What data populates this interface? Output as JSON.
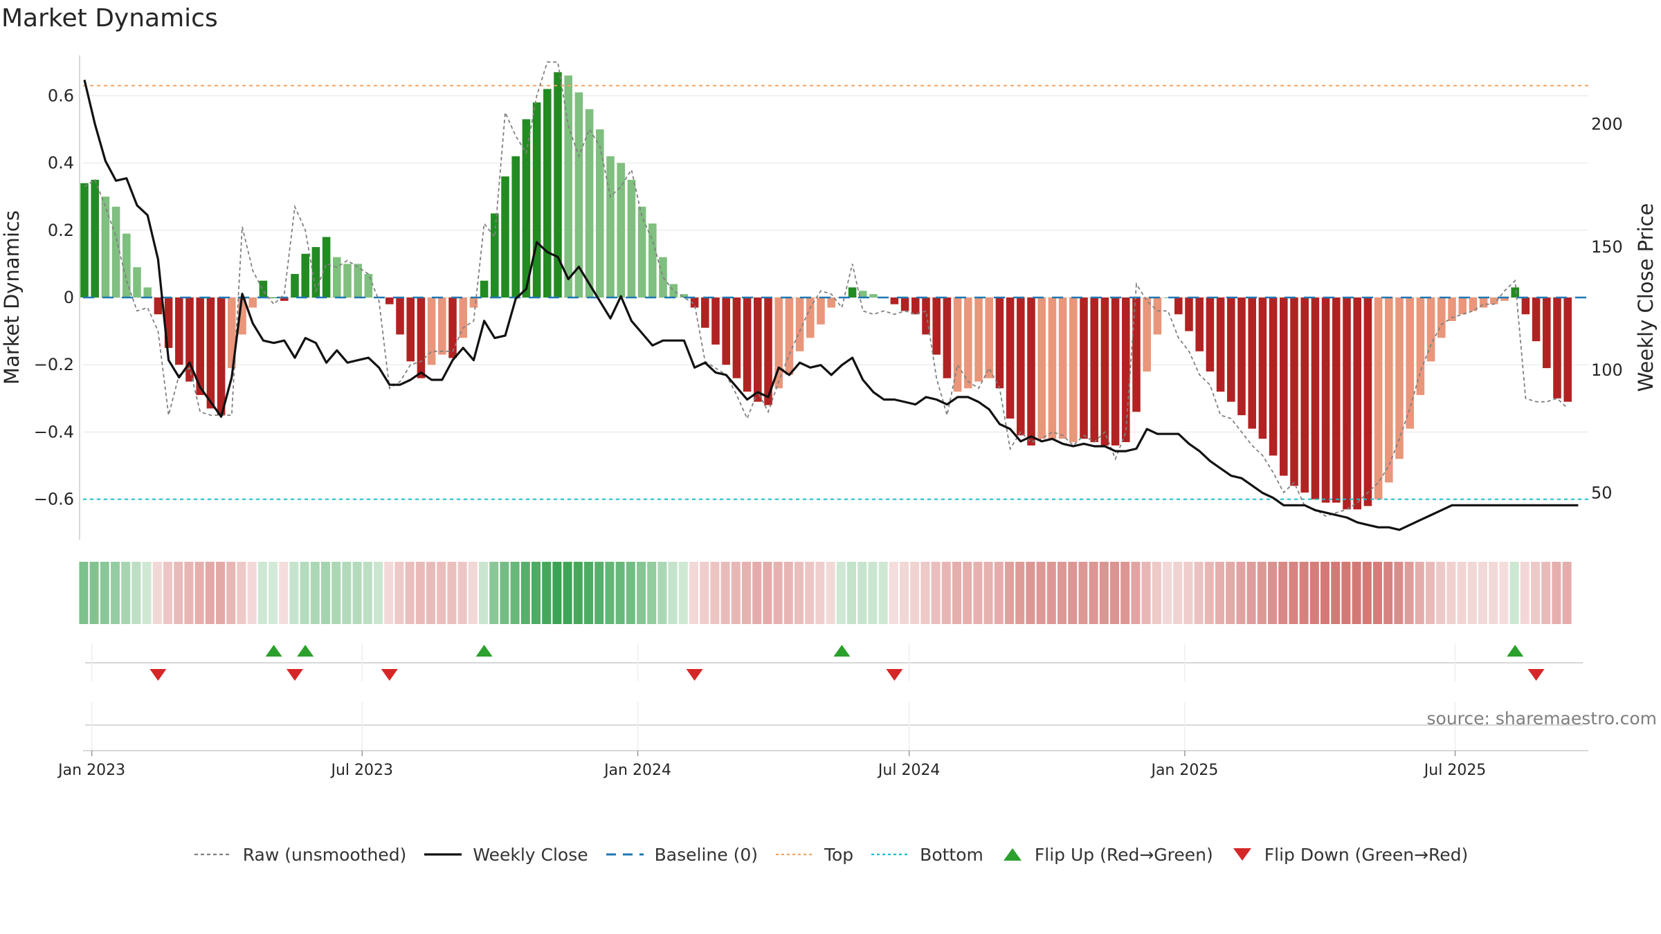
{
  "chart_data": {
    "type": "bar",
    "title": "Market Dynamics",
    "source": "source: sharemaestro.com",
    "ylabel_left": "Market Dynamics",
    "ylabel_right": "Weekly Close Price",
    "ylim_left": [
      -0.72,
      0.72
    ],
    "ylim_right": [
      31,
      228
    ],
    "yticks_left": [
      0.6,
      0.4,
      0.2,
      0,
      -0.2,
      -0.4,
      -0.6
    ],
    "yticks_left_labels": [
      "0.6",
      "0.4",
      "0.2",
      "0",
      "−0.2",
      "−0.4",
      "−0.6"
    ],
    "yticks_right": [
      200,
      150,
      100,
      50
    ],
    "yticks_right_labels": [
      "200",
      "150",
      "100",
      "50"
    ],
    "x_labels": [
      "Jan 2023",
      "Jul 2023",
      "Jan 2024",
      "Jul 2024",
      "Jan 2025",
      "Jul 2025"
    ],
    "x_label_weeks": [
      0.7,
      26.4,
      52.6,
      78.4,
      104.6,
      130.3
    ],
    "grid": true,
    "top_level": 0.63,
    "bottom_level": -0.6,
    "baseline": 0,
    "colors": {
      "strong_green": "#228b22",
      "light_green": "#7fbf7f",
      "strong_red": "#b22222",
      "light_red": "#e9967a",
      "raw_line": "#808080",
      "close_line": "#111111",
      "baseline": "#1f77b4",
      "top": "#f4a460",
      "bottom": "#17becf",
      "flip_up": "#2ca02c",
      "flip_down": "#d62728"
    },
    "momentum": [
      0.34,
      0.35,
      0.3,
      0.27,
      0.19,
      0.09,
      0.03,
      -0.05,
      -0.15,
      -0.2,
      -0.25,
      -0.29,
      -0.33,
      -0.35,
      -0.21,
      -0.11,
      -0.03,
      0.05,
      0.0,
      -0.01,
      0.07,
      0.13,
      0.15,
      0.18,
      0.12,
      0.1,
      0.1,
      0.07,
      0.0,
      -0.02,
      -0.11,
      -0.19,
      -0.24,
      -0.2,
      -0.17,
      -0.18,
      -0.12,
      -0.03,
      0.05,
      0.25,
      0.36,
      0.42,
      0.53,
      0.58,
      0.62,
      0.67,
      0.66,
      0.61,
      0.56,
      0.5,
      0.42,
      0.4,
      0.35,
      0.27,
      0.22,
      0.12,
      0.04,
      0.01,
      -0.03,
      -0.09,
      -0.14,
      -0.2,
      -0.24,
      -0.28,
      -0.31,
      -0.32,
      -0.27,
      -0.23,
      -0.16,
      -0.12,
      -0.08,
      -0.03,
      0.0,
      0.03,
      0.02,
      0.01,
      0.0,
      -0.02,
      -0.04,
      -0.05,
      -0.11,
      -0.17,
      -0.24,
      -0.28,
      -0.27,
      -0.25,
      -0.24,
      -0.27,
      -0.36,
      -0.41,
      -0.44,
      -0.42,
      -0.42,
      -0.42,
      -0.43,
      -0.42,
      -0.43,
      -0.44,
      -0.44,
      -0.43,
      -0.34,
      -0.22,
      -0.11,
      0.0,
      -0.05,
      -0.1,
      -0.16,
      -0.22,
      -0.28,
      -0.31,
      -0.35,
      -0.39,
      -0.42,
      -0.47,
      -0.53,
      -0.56,
      -0.58,
      -0.6,
      -0.61,
      -0.61,
      -0.63,
      -0.63,
      -0.62,
      -0.6,
      -0.55,
      -0.48,
      -0.39,
      -0.29,
      -0.19,
      -0.12,
      -0.07,
      -0.05,
      -0.04,
      -0.03,
      -0.02,
      -0.01,
      0.03,
      -0.05,
      -0.13,
      -0.21,
      -0.3,
      -0.31
    ],
    "strong": [
      1,
      1,
      0,
      0,
      0,
      0,
      0,
      1,
      1,
      1,
      1,
      1,
      1,
      1,
      0,
      0,
      0,
      1,
      1,
      1,
      1,
      1,
      1,
      1,
      0,
      0,
      0,
      0,
      0,
      1,
      1,
      1,
      1,
      0,
      0,
      1,
      0,
      0,
      1,
      1,
      1,
      1,
      1,
      1,
      1,
      1,
      0,
      0,
      0,
      0,
      0,
      0,
      0,
      0,
      0,
      0,
      0,
      0,
      1,
      1,
      1,
      1,
      1,
      1,
      1,
      1,
      0,
      0,
      0,
      0,
      0,
      0,
      0,
      1,
      0,
      0,
      0,
      1,
      1,
      1,
      1,
      1,
      1,
      0,
      0,
      0,
      0,
      1,
      1,
      1,
      1,
      0,
      0,
      0,
      0,
      1,
      1,
      1,
      1,
      1,
      1,
      0,
      0,
      0,
      1,
      1,
      1,
      1,
      1,
      1,
      1,
      1,
      1,
      1,
      1,
      1,
      1,
      1,
      1,
      1,
      1,
      1,
      1,
      0,
      0,
      0,
      0,
      0,
      0,
      0,
      0,
      0,
      0,
      0,
      0,
      0,
      1,
      1,
      1,
      1,
      1,
      1
    ],
    "raw": [
      0.33,
      0.35,
      0.27,
      0.18,
      0.05,
      -0.04,
      -0.03,
      -0.1,
      -0.35,
      -0.23,
      -0.21,
      -0.34,
      -0.35,
      -0.35,
      -0.35,
      0.21,
      0.08,
      0.02,
      -0.02,
      0.01,
      0.27,
      0.2,
      0.02,
      0.1,
      0.09,
      0.11,
      0.09,
      0.07,
      -0.01,
      -0.27,
      -0.25,
      -0.2,
      -0.19,
      -0.16,
      -0.16,
      -0.16,
      -0.09,
      -0.07,
      0.22,
      0.18,
      0.55,
      0.48,
      0.43,
      0.6,
      0.7,
      0.7,
      0.51,
      0.42,
      0.5,
      0.45,
      0.3,
      0.33,
      0.38,
      0.24,
      0.17,
      0.06,
      0.02,
      0.0,
      -0.02,
      -0.19,
      -0.21,
      -0.23,
      -0.29,
      -0.36,
      -0.28,
      -0.34,
      -0.25,
      -0.17,
      -0.1,
      -0.03,
      0.02,
      0.01,
      -0.03,
      0.1,
      -0.04,
      -0.05,
      -0.04,
      -0.05,
      -0.04,
      -0.05,
      -0.04,
      -0.24,
      -0.35,
      -0.2,
      -0.25,
      -0.27,
      -0.21,
      -0.27,
      -0.45,
      -0.4,
      -0.43,
      -0.42,
      -0.4,
      -0.41,
      -0.44,
      -0.41,
      -0.43,
      -0.4,
      -0.48,
      -0.4,
      0.04,
      -0.01,
      -0.04,
      -0.04,
      -0.12,
      -0.16,
      -0.23,
      -0.26,
      -0.35,
      -0.36,
      -0.4,
      -0.44,
      -0.47,
      -0.52,
      -0.58,
      -0.55,
      -0.62,
      -0.63,
      -0.65,
      -0.64,
      -0.63,
      -0.61,
      -0.58,
      -0.55,
      -0.5,
      -0.42,
      -0.33,
      -0.22,
      -0.14,
      -0.08,
      -0.06,
      -0.05,
      -0.04,
      -0.02,
      -0.02,
      0.02,
      0.05,
      -0.3,
      -0.31,
      -0.31,
      -0.3,
      -0.33
    ],
    "close": [
      218,
      200,
      185,
      177,
      178,
      167,
      163,
      145,
      104,
      97,
      103,
      93,
      87,
      81,
      97,
      131,
      119,
      112,
      111,
      112,
      105,
      113,
      111,
      103,
      108,
      103,
      104,
      105,
      101,
      94,
      94,
      96,
      99,
      96,
      96,
      104,
      109,
      104,
      120,
      113,
      114,
      129,
      133,
      152,
      148,
      146,
      137,
      142,
      135,
      128,
      121,
      130,
      120,
      115,
      110,
      112,
      112,
      112,
      101,
      103,
      99,
      98,
      93,
      88,
      91,
      89,
      101,
      98,
      103,
      101,
      102,
      98,
      102,
      105,
      96,
      91,
      88,
      88,
      87,
      86,
      89,
      88,
      86,
      89,
      89,
      87,
      84,
      78,
      76,
      71,
      73,
      71,
      72,
      70,
      69,
      70,
      69,
      69,
      67,
      67,
      68,
      76,
      74,
      74,
      74,
      70,
      67,
      63,
      60,
      57,
      56,
      53,
      50,
      48,
      45,
      45,
      45,
      43,
      42,
      41,
      40,
      38,
      37,
      36,
      36,
      35,
      37,
      39,
      41,
      43,
      45,
      45,
      45,
      45,
      45,
      45,
      45,
      45,
      45,
      45,
      45,
      45,
      45
    ],
    "flip_up_weeks": [
      18,
      21,
      38,
      72,
      136
    ],
    "flip_down_weeks": [
      7,
      20,
      29,
      58,
      77,
      138
    ],
    "heat": [
      0.52,
      0.5,
      0.45,
      0.38,
      0.28,
      0.15,
      0.05,
      -0.08,
      -0.2,
      -0.28,
      -0.33,
      -0.38,
      -0.42,
      -0.43,
      -0.32,
      -0.18,
      -0.06,
      0.06,
      0.02,
      -0.02,
      0.1,
      0.2,
      0.26,
      0.3,
      0.25,
      0.22,
      0.2,
      0.16,
      0.08,
      -0.05,
      -0.18,
      -0.26,
      -0.3,
      -0.28,
      -0.26,
      -0.25,
      -0.2,
      -0.08,
      0.08,
      0.45,
      0.58,
      0.65,
      0.75,
      0.8,
      0.85,
      0.9,
      0.88,
      0.84,
      0.8,
      0.75,
      0.67,
      0.64,
      0.58,
      0.48,
      0.4,
      0.25,
      0.12,
      0.05,
      -0.05,
      -0.15,
      -0.22,
      -0.28,
      -0.32,
      -0.36,
      -0.4,
      -0.41,
      -0.37,
      -0.33,
      -0.26,
      -0.2,
      -0.14,
      -0.06,
      0.05,
      0.12,
      0.1,
      0.08,
      0.05,
      -0.03,
      -0.08,
      -0.1,
      -0.18,
      -0.26,
      -0.33,
      -0.38,
      -0.38,
      -0.37,
      -0.36,
      -0.39,
      -0.49,
      -0.54,
      -0.57,
      -0.56,
      -0.56,
      -0.56,
      -0.57,
      -0.56,
      -0.57,
      -0.58,
      -0.58,
      -0.57,
      -0.46,
      -0.32,
      -0.18,
      -0.05,
      -0.1,
      -0.16,
      -0.24,
      -0.32,
      -0.38,
      -0.42,
      -0.47,
      -0.52,
      -0.56,
      -0.61,
      -0.67,
      -0.71,
      -0.73,
      -0.76,
      -0.78,
      -0.78,
      -0.8,
      -0.8,
      -0.79,
      -0.77,
      -0.71,
      -0.63,
      -0.52,
      -0.4,
      -0.28,
      -0.18,
      -0.12,
      -0.09,
      -0.07,
      -0.06,
      -0.05,
      -0.03,
      0.06,
      -0.08,
      -0.18,
      -0.28,
      -0.38,
      -0.4
    ]
  },
  "legend": {
    "raw": "Raw (unsmoothed)",
    "close": "Weekly Close",
    "baseline": "Baseline (0)",
    "top": "Top",
    "bottom": "Bottom",
    "flip_up": "Flip Up (Red→Green)",
    "flip_down": "Flip Down (Green→Red)"
  }
}
